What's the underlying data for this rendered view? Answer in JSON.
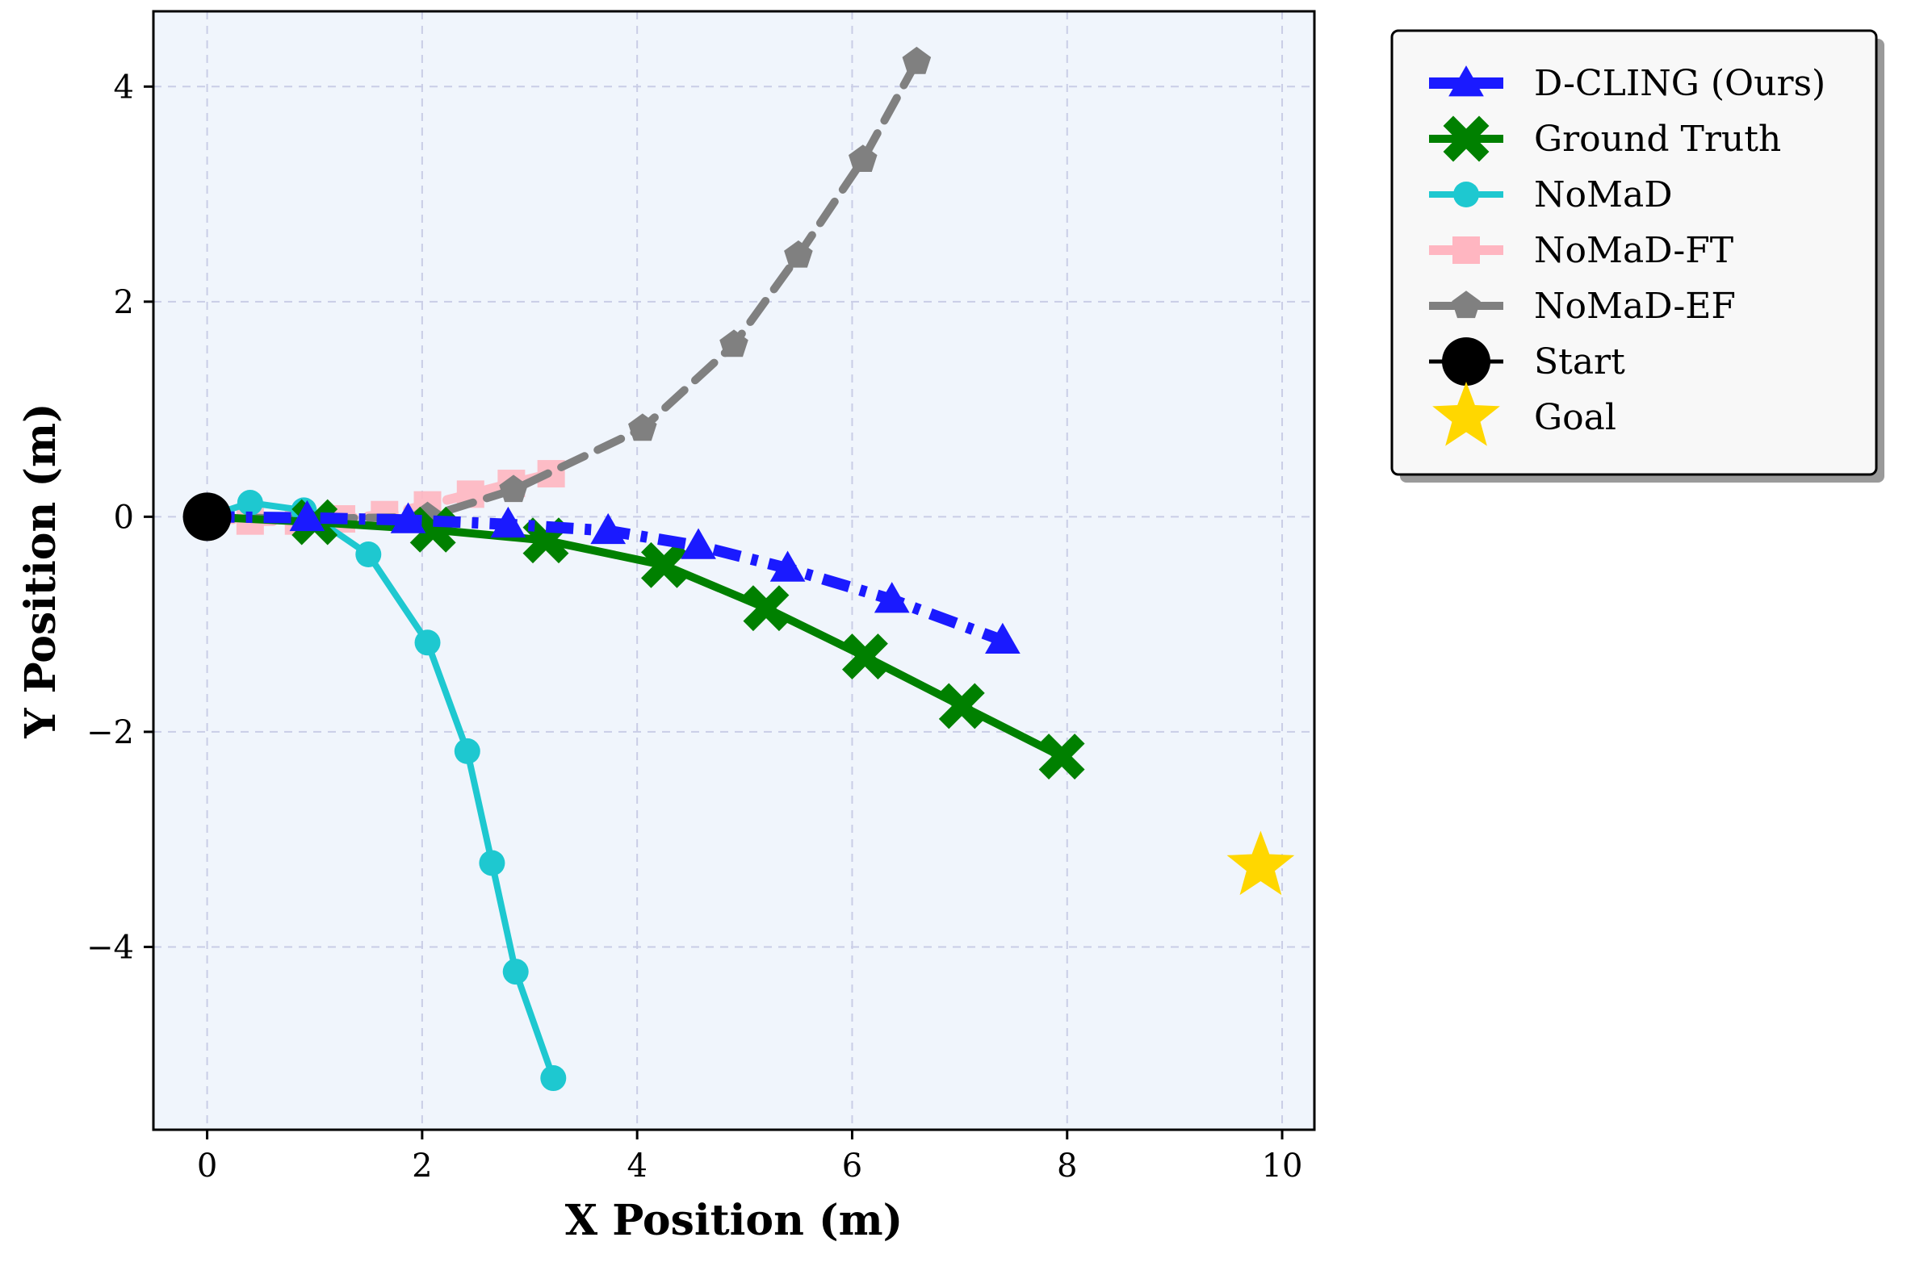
{
  "chart_data": {
    "type": "line",
    "title": "",
    "xlabel": "X Position (m)",
    "ylabel": "Y Position (m)",
    "xlim": [
      -0.5,
      10.3
    ],
    "ylim": [
      -5.7,
      4.7
    ],
    "xticks": [
      0,
      2,
      4,
      6,
      8,
      10
    ],
    "yticks": [
      -4,
      -2,
      0,
      2,
      4
    ],
    "xtick_labels": [
      "0",
      "2",
      "4",
      "6",
      "8",
      "10"
    ],
    "ytick_labels": [
      "−4",
      "−2",
      "0",
      "2",
      "4"
    ],
    "grid": true,
    "legend_placement": "outside-right-top",
    "background_color": "#f0f5fc",
    "series": [
      {
        "name": "D-CLING (Ours)",
        "color": "#1a1aff",
        "line_style": "dashdot",
        "marker": "triangle",
        "x": [
          0.0,
          0.93,
          1.87,
          2.8,
          3.73,
          4.57,
          5.4,
          6.37,
          7.4
        ],
        "y": [
          0.0,
          -0.01,
          -0.03,
          -0.07,
          -0.13,
          -0.27,
          -0.48,
          -0.77,
          -1.15
        ]
      },
      {
        "name": "Ground Truth",
        "color": "#008000",
        "line_style": "solid",
        "marker": "x",
        "x": [
          0.0,
          1.0,
          2.1,
          3.15,
          4.25,
          5.2,
          6.12,
          7.02,
          7.95
        ],
        "y": [
          0.0,
          -0.05,
          -0.12,
          -0.22,
          -0.45,
          -0.85,
          -1.3,
          -1.76,
          -2.23
        ]
      },
      {
        "name": "NoMaD",
        "color": "#1ec8d0",
        "line_style": "solid",
        "marker": "circle",
        "x": [
          0.0,
          0.4,
          0.9,
          1.5,
          2.05,
          2.42,
          2.65,
          2.87,
          3.22
        ],
        "y": [
          0.0,
          0.13,
          0.06,
          -0.35,
          -1.17,
          -2.18,
          -3.22,
          -4.23,
          -5.22
        ]
      },
      {
        "name": "NoMaD-FT",
        "color": "#ffb6c1",
        "line_style": "dashed",
        "marker": "square",
        "x": [
          0.0,
          0.4,
          0.85,
          1.25,
          1.65,
          2.05,
          2.45,
          2.83,
          3.2
        ],
        "y": [
          0.0,
          -0.04,
          -0.04,
          -0.02,
          0.02,
          0.11,
          0.21,
          0.31,
          0.4
        ]
      },
      {
        "name": "NoMaD-EF",
        "color": "#808080",
        "line_style": "dashed",
        "marker": "pentagon",
        "x": [
          0.0,
          0.92,
          2.05,
          2.85,
          4.05,
          4.9,
          5.5,
          6.1,
          6.6
        ],
        "y": [
          0.0,
          -0.02,
          0.0,
          0.25,
          0.82,
          1.6,
          2.43,
          3.32,
          4.23
        ]
      }
    ],
    "points": [
      {
        "name": "Start",
        "color": "#000000",
        "marker": "circle",
        "x": 0.0,
        "y": 0.0
      },
      {
        "name": "Goal",
        "color": "#ffd700",
        "marker": "star",
        "x": 9.8,
        "y": -3.25
      }
    ]
  }
}
